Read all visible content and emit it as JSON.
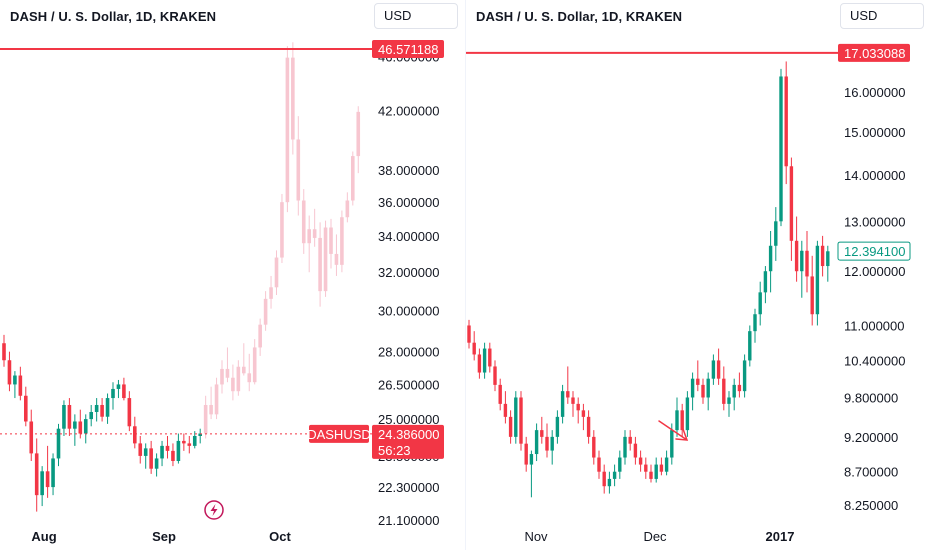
{
  "colors": {
    "up": "#089981",
    "down": "#f23645",
    "ghost": "#f7c6d0",
    "tag_red": "#f23645",
    "tag_green_border": "#089981",
    "text": "#131722"
  },
  "left": {
    "title": "DASH / U. S. Dollar, 1D, KRAKEN",
    "currency": "USD",
    "icon": "lightning-icon",
    "chart_data": {
      "type": "candlestick",
      "scale": "log",
      "ylim": [
        21.1,
        47.6
      ],
      "y_ticks": [
        "21.100000",
        "22.300000",
        "23.500000",
        "25.000000",
        "26.500000",
        "28.000000",
        "30.000000",
        "32.000000",
        "34.000000",
        "36.000000",
        "38.000000",
        "42.000000",
        "46.000000"
      ],
      "x_ticks": [
        "Aug",
        "Sep",
        "Oct"
      ],
      "tags": {
        "line_price": "46.571188",
        "symbol": "DASHUSD",
        "price": "24.386000",
        "countdown": "56:23"
      },
      "price_line": 46.571188,
      "current_price": 24.386,
      "real_candles": [
        [
          28.4,
          28.8,
          27.3,
          27.6
        ],
        [
          27.6,
          28.0,
          26.2,
          26.5
        ],
        [
          26.5,
          27.1,
          25.9,
          26.9
        ],
        [
          26.9,
          27.3,
          25.8,
          26.0
        ],
        [
          26.0,
          26.4,
          24.7,
          24.9
        ],
        [
          24.9,
          25.4,
          23.3,
          23.6
        ],
        [
          23.6,
          24.2,
          21.4,
          22.0
        ],
        [
          22.0,
          23.1,
          21.6,
          22.9
        ],
        [
          22.9,
          23.9,
          21.9,
          22.3
        ],
        [
          22.3,
          23.6,
          22.0,
          23.4
        ],
        [
          23.4,
          24.8,
          23.1,
          24.6
        ],
        [
          24.6,
          25.8,
          24.3,
          25.6
        ],
        [
          25.6,
          25.9,
          24.3,
          24.6
        ],
        [
          24.6,
          25.2,
          23.9,
          24.9
        ],
        [
          24.9,
          25.4,
          24.2,
          24.4
        ],
        [
          24.4,
          25.2,
          24.0,
          25.0
        ],
        [
          25.0,
          25.6,
          24.7,
          25.3
        ],
        [
          25.3,
          25.9,
          24.9,
          25.6
        ],
        [
          25.6,
          25.9,
          24.9,
          25.1
        ],
        [
          25.1,
          26.1,
          24.8,
          25.9
        ],
        [
          25.9,
          26.6,
          25.4,
          26.3
        ],
        [
          26.3,
          26.7,
          25.9,
          26.5
        ],
        [
          26.5,
          26.8,
          25.8,
          25.9
        ],
        [
          25.9,
          26.2,
          24.5,
          24.7
        ],
        [
          24.7,
          25.1,
          23.8,
          24.0
        ],
        [
          24.0,
          24.3,
          23.2,
          23.5
        ],
        [
          23.5,
          24.0,
          23.0,
          23.8
        ],
        [
          23.8,
          24.1,
          22.8,
          23.0
        ],
        [
          23.0,
          23.6,
          22.7,
          23.4
        ],
        [
          23.4,
          24.1,
          23.1,
          23.9
        ],
        [
          23.9,
          24.3,
          23.4,
          23.7
        ],
        [
          23.7,
          24.0,
          23.1,
          23.3
        ],
        [
          23.3,
          24.4,
          23.2,
          24.1
        ],
        [
          24.1,
          24.4,
          23.7,
          24.0
        ],
        [
          24.0,
          24.3,
          23.6,
          23.9
        ],
        [
          23.9,
          24.5,
          23.8,
          24.3
        ],
        [
          24.3,
          24.6,
          24.0,
          24.4
        ]
      ],
      "ghost_candles": [
        [
          24.4,
          26.0,
          24.2,
          25.6
        ],
        [
          25.6,
          26.4,
          25.0,
          25.2
        ],
        [
          25.2,
          26.8,
          25.0,
          26.5
        ],
        [
          26.5,
          27.6,
          26.1,
          27.2
        ],
        [
          27.2,
          28.2,
          26.6,
          26.8
        ],
        [
          26.8,
          27.4,
          25.8,
          26.2
        ],
        [
          26.2,
          27.6,
          26.0,
          27.3
        ],
        [
          27.3,
          28.4,
          26.9,
          27.0
        ],
        [
          27.0,
          27.9,
          26.2,
          26.6
        ],
        [
          26.6,
          28.6,
          26.5,
          28.2
        ],
        [
          28.2,
          29.6,
          27.8,
          29.3
        ],
        [
          29.3,
          31.0,
          29.0,
          30.6
        ],
        [
          30.6,
          31.8,
          30.1,
          31.2
        ],
        [
          31.2,
          33.2,
          30.8,
          32.8
        ],
        [
          32.8,
          36.5,
          32.5,
          36.0
        ],
        [
          36.0,
          46.8,
          35.4,
          45.9
        ],
        [
          45.9,
          47.1,
          39.0,
          40.0
        ],
        [
          40.0,
          41.6,
          35.2,
          36.1
        ],
        [
          36.1,
          36.8,
          33.0,
          33.6
        ],
        [
          33.6,
          35.2,
          32.0,
          34.4
        ],
        [
          34.4,
          35.6,
          33.4,
          33.9
        ],
        [
          33.9,
          34.8,
          30.2,
          31.0
        ],
        [
          31.0,
          34.9,
          30.7,
          34.5
        ],
        [
          34.5,
          35.0,
          32.2,
          33.0
        ],
        [
          33.0,
          34.1,
          31.8,
          32.4
        ],
        [
          32.4,
          35.5,
          32.0,
          35.1
        ],
        [
          35.1,
          36.6,
          34.8,
          36.1
        ],
        [
          36.1,
          39.2,
          35.8,
          38.9
        ],
        [
          38.9,
          42.3,
          37.8,
          41.9
        ]
      ]
    }
  },
  "right": {
    "title": "DASH / U. S. Dollar, 1D, KRAKEN",
    "currency": "USD",
    "annotation": "arrow",
    "chart_data": {
      "type": "candlestick",
      "scale": "log",
      "ylim": [
        8.0,
        17.5
      ],
      "y_ticks": [
        "8.250000",
        "8.700000",
        "9.200000",
        "9.800000",
        "10.400000",
        "11.000000",
        "12.000000",
        "13.000000",
        "14.000000",
        "15.000000",
        "16.000000"
      ],
      "x_ticks": [
        "Nov",
        "Dec",
        "2017"
      ],
      "tags": {
        "line_price": "17.033088",
        "price": "12.394100"
      },
      "price_line": 17.033088,
      "current_price": 12.3941,
      "candles": [
        [
          11.0,
          11.1,
          10.6,
          10.7
        ],
        [
          10.7,
          10.9,
          10.4,
          10.5
        ],
        [
          10.5,
          10.6,
          10.1,
          10.2
        ],
        [
          10.2,
          10.7,
          10.1,
          10.6
        ],
        [
          10.6,
          10.7,
          10.2,
          10.3
        ],
        [
          10.3,
          10.4,
          9.9,
          10.0
        ],
        [
          10.0,
          10.1,
          9.6,
          9.7
        ],
        [
          9.7,
          9.9,
          9.4,
          9.5
        ],
        [
          9.5,
          9.6,
          9.1,
          9.2
        ],
        [
          9.2,
          9.9,
          9.1,
          9.8
        ],
        [
          9.8,
          9.9,
          9.0,
          9.1
        ],
        [
          9.1,
          9.2,
          8.7,
          8.8
        ],
        [
          8.8,
          9.0,
          8.35,
          8.95
        ],
        [
          8.95,
          9.4,
          8.85,
          9.3
        ],
        [
          9.3,
          9.5,
          9.1,
          9.2
        ],
        [
          9.2,
          9.4,
          8.9,
          9.0
        ],
        [
          9.0,
          9.3,
          8.8,
          9.2
        ],
        [
          9.2,
          9.6,
          9.1,
          9.5
        ],
        [
          9.5,
          10.0,
          9.4,
          9.9
        ],
        [
          9.9,
          10.3,
          9.7,
          9.8
        ],
        [
          9.8,
          9.9,
          9.5,
          9.7
        ],
        [
          9.7,
          9.8,
          9.4,
          9.6
        ],
        [
          9.6,
          9.7,
          9.3,
          9.5
        ],
        [
          9.5,
          9.6,
          9.1,
          9.2
        ],
        [
          9.2,
          9.3,
          8.8,
          8.9
        ],
        [
          8.9,
          9.0,
          8.6,
          8.7
        ],
        [
          8.7,
          8.8,
          8.4,
          8.5
        ],
        [
          8.5,
          8.7,
          8.4,
          8.6
        ],
        [
          8.6,
          8.8,
          8.5,
          8.7
        ],
        [
          8.7,
          9.0,
          8.6,
          8.9
        ],
        [
          8.9,
          9.3,
          8.8,
          9.2
        ],
        [
          9.2,
          9.3,
          9.0,
          9.1
        ],
        [
          9.1,
          9.2,
          8.8,
          8.9
        ],
        [
          8.9,
          9.0,
          8.7,
          8.8
        ],
        [
          8.8,
          8.9,
          8.6,
          8.7
        ],
        [
          8.7,
          8.8,
          8.55,
          8.6
        ],
        [
          8.6,
          8.9,
          8.55,
          8.8
        ],
        [
          8.8,
          8.9,
          8.65,
          8.7
        ],
        [
          8.7,
          9.0,
          8.65,
          8.9
        ],
        [
          8.9,
          9.4,
          8.8,
          9.3
        ],
        [
          9.3,
          9.8,
          9.2,
          9.6
        ],
        [
          9.6,
          9.7,
          9.2,
          9.3
        ],
        [
          9.3,
          9.9,
          9.2,
          9.8
        ],
        [
          9.8,
          10.2,
          9.6,
          10.1
        ],
        [
          10.1,
          10.4,
          9.9,
          10.0
        ],
        [
          10.0,
          10.1,
          9.7,
          9.8
        ],
        [
          9.8,
          10.2,
          9.6,
          10.1
        ],
        [
          10.1,
          10.5,
          10.0,
          10.4
        ],
        [
          10.4,
          10.6,
          10.0,
          10.1
        ],
        [
          10.1,
          10.3,
          9.6,
          9.7
        ],
        [
          9.7,
          9.9,
          9.5,
          9.8
        ],
        [
          9.8,
          10.1,
          9.6,
          10.0
        ],
        [
          10.0,
          10.2,
          9.8,
          9.9
        ],
        [
          9.9,
          10.5,
          9.8,
          10.4
        ],
        [
          10.4,
          11.0,
          10.3,
          10.9
        ],
        [
          10.9,
          11.3,
          10.7,
          11.2
        ],
        [
          11.2,
          11.8,
          11.0,
          11.6
        ],
        [
          11.6,
          12.1,
          11.4,
          12.0
        ],
        [
          12.0,
          12.8,
          11.6,
          12.5
        ],
        [
          12.5,
          13.3,
          12.2,
          13.0
        ],
        [
          13.0,
          16.6,
          12.9,
          16.4
        ],
        [
          16.4,
          16.8,
          13.8,
          14.2
        ],
        [
          14.2,
          14.4,
          12.2,
          12.6
        ],
        [
          12.6,
          13.1,
          11.8,
          12.0
        ],
        [
          12.0,
          12.6,
          11.5,
          12.4
        ],
        [
          12.4,
          12.8,
          11.6,
          11.9
        ],
        [
          11.9,
          12.3,
          11.0,
          11.2
        ],
        [
          11.2,
          12.6,
          11.0,
          12.5
        ],
        [
          12.5,
          12.7,
          11.9,
          12.1
        ],
        [
          12.1,
          12.5,
          11.8,
          12.39
        ]
      ]
    }
  }
}
